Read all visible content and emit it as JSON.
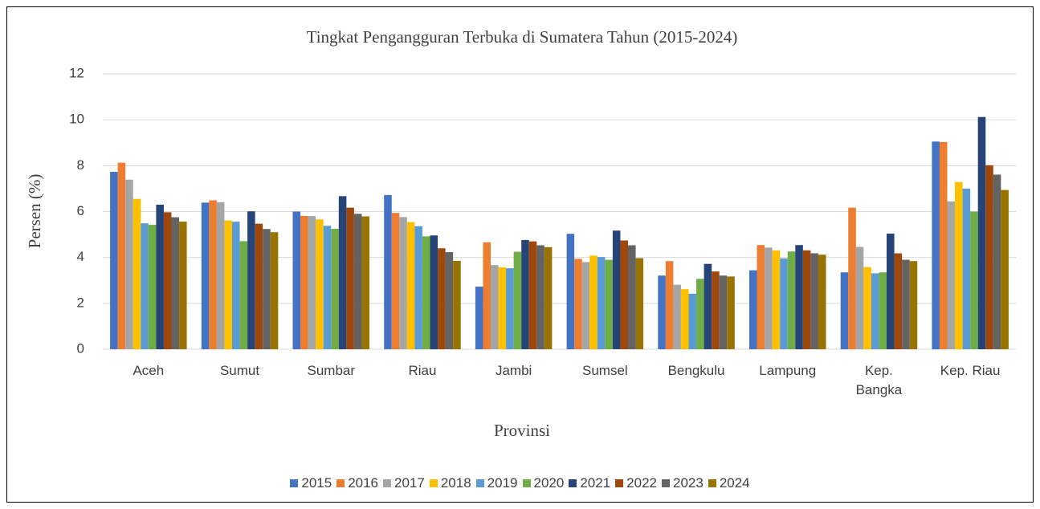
{
  "chart_data": {
    "type": "bar",
    "title": "Tingkat Pengangguran Terbuka di Sumatera Tahun (2015-2024)",
    "x_label": "Provinsi",
    "y_label": "Persen (%)",
    "categories": [
      "Aceh",
      "Sumut",
      "Sumbar",
      "Riau",
      "Jambi",
      "Sumsel",
      "Bengkulu",
      "Lampung",
      "Kep. Bangka",
      "Kep. Riau"
    ],
    "series": [
      {
        "name": "2015",
        "color": "#4472c4",
        "values": [
          7.73,
          6.39,
          6.0,
          6.72,
          2.73,
          5.03,
          3.21,
          3.44,
          3.35,
          9.05
        ]
      },
      {
        "name": "2016",
        "color": "#ed7d31",
        "values": [
          8.13,
          6.49,
          5.81,
          5.94,
          4.66,
          3.94,
          3.84,
          4.54,
          6.17,
          9.03
        ]
      },
      {
        "name": "2017",
        "color": "#a5a5a5",
        "values": [
          7.39,
          6.41,
          5.8,
          5.76,
          3.67,
          3.8,
          2.81,
          4.43,
          4.46,
          6.44
        ]
      },
      {
        "name": "2018",
        "color": "#ffc000",
        "values": [
          6.55,
          5.61,
          5.66,
          5.54,
          3.57,
          4.08,
          2.62,
          4.31,
          3.58,
          7.29
        ]
      },
      {
        "name": "2019",
        "color": "#5b9bd5",
        "values": [
          5.49,
          5.56,
          5.38,
          5.36,
          3.53,
          4.02,
          2.42,
          3.96,
          3.31,
          7.0
        ]
      },
      {
        "name": "2020",
        "color": "#70ad47",
        "values": [
          5.42,
          4.71,
          5.25,
          4.92,
          4.25,
          3.9,
          3.07,
          4.26,
          3.35,
          6.0
        ]
      },
      {
        "name": "2021",
        "color": "#264478",
        "values": [
          6.3,
          6.01,
          6.67,
          4.96,
          4.76,
          5.17,
          3.72,
          4.54,
          5.04,
          10.12
        ]
      },
      {
        "name": "2022",
        "color": "#9e480e",
        "values": [
          5.97,
          5.47,
          6.17,
          4.4,
          4.7,
          4.74,
          3.39,
          4.31,
          4.18,
          8.02
        ]
      },
      {
        "name": "2023",
        "color": "#636363",
        "values": [
          5.75,
          5.24,
          5.9,
          4.23,
          4.53,
          4.53,
          3.21,
          4.18,
          3.9,
          7.61
        ]
      },
      {
        "name": "2024",
        "color": "#997300",
        "values": [
          5.56,
          5.1,
          5.79,
          3.85,
          4.45,
          3.97,
          3.17,
          4.12,
          3.84,
          6.94
        ]
      }
    ],
    "ylim": [
      0,
      12
    ],
    "yticks": [
      0,
      2,
      4,
      6,
      8,
      10,
      12
    ],
    "grid": true,
    "legend": "bottom"
  }
}
